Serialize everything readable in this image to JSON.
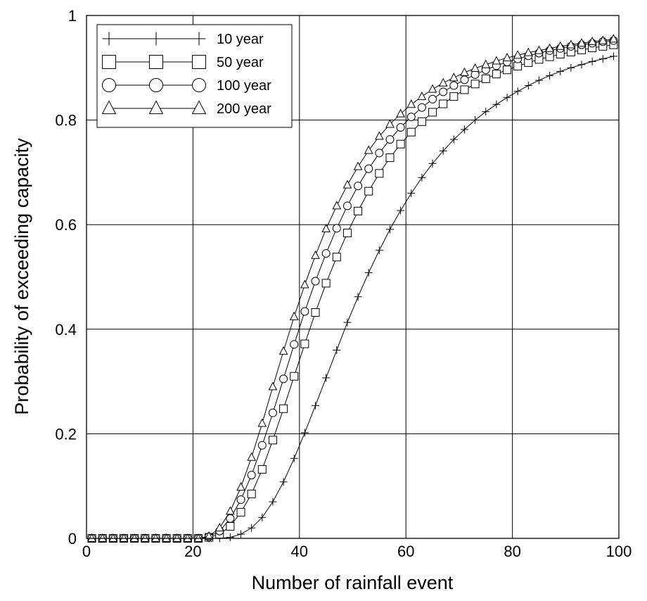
{
  "chart_data": {
    "type": "line",
    "title": "",
    "xlabel": "Number of rainfall event",
    "ylabel": "Probability of exceeding capacity",
    "xlim": [
      0,
      100
    ],
    "ylim": [
      0,
      1
    ],
    "xticks": [
      0,
      20,
      40,
      60,
      80,
      100
    ],
    "yticks": [
      0,
      0.2,
      0.4,
      0.6,
      0.8,
      1
    ],
    "xtick_labels": [
      "0",
      "20",
      "40",
      "60",
      "80",
      "100"
    ],
    "ytick_labels": [
      "0",
      "0.2",
      "0.4",
      "0.6",
      "0.8",
      "1"
    ],
    "grid": true,
    "legend_position": "top-left",
    "series": [
      {
        "name": "10 year",
        "marker": "plus",
        "x": [
          1,
          3,
          5,
          7,
          9,
          11,
          13,
          15,
          17,
          19,
          21,
          23,
          25,
          27,
          29,
          31,
          33,
          35,
          37,
          39,
          41,
          43,
          45,
          47,
          49,
          51,
          53,
          55,
          57,
          59,
          61,
          63,
          65,
          67,
          69,
          71,
          73,
          75,
          77,
          79,
          81,
          83,
          85,
          87,
          89,
          91,
          93,
          95,
          97,
          99
        ],
        "y": [
          0,
          0,
          0,
          0,
          0,
          0,
          0,
          0,
          0,
          0,
          0,
          0,
          0,
          0.002,
          0.008,
          0.02,
          0.04,
          0.07,
          0.108,
          0.153,
          0.202,
          0.254,
          0.307,
          0.36,
          0.413,
          0.462,
          0.508,
          0.551,
          0.591,
          0.627,
          0.66,
          0.69,
          0.717,
          0.741,
          0.763,
          0.782,
          0.8,
          0.816,
          0.83,
          0.843,
          0.855,
          0.866,
          0.876,
          0.885,
          0.893,
          0.9,
          0.906,
          0.912,
          0.917,
          0.922
        ]
      },
      {
        "name": "50 year",
        "marker": "square",
        "x": [
          1,
          3,
          5,
          7,
          9,
          11,
          13,
          15,
          17,
          19,
          21,
          23,
          25,
          27,
          29,
          31,
          33,
          35,
          37,
          39,
          41,
          43,
          45,
          47,
          49,
          51,
          53,
          55,
          57,
          59,
          61,
          63,
          65,
          67,
          69,
          71,
          73,
          75,
          77,
          79,
          81,
          83,
          85,
          87,
          89,
          91,
          93,
          95,
          97,
          99
        ],
        "y": [
          0,
          0,
          0,
          0,
          0,
          0,
          0,
          0,
          0,
          0,
          0,
          0.002,
          0.008,
          0.023,
          0.05,
          0.085,
          0.132,
          0.188,
          0.248,
          0.31,
          0.372,
          0.432,
          0.488,
          0.538,
          0.584,
          0.626,
          0.664,
          0.698,
          0.728,
          0.754,
          0.777,
          0.797,
          0.815,
          0.831,
          0.845,
          0.858,
          0.869,
          0.879,
          0.888,
          0.896,
          0.903,
          0.91,
          0.916,
          0.921,
          0.926,
          0.93,
          0.934,
          0.938,
          0.941,
          0.944
        ]
      },
      {
        "name": "100 year",
        "marker": "circle",
        "x": [
          1,
          3,
          5,
          7,
          9,
          11,
          13,
          15,
          17,
          19,
          21,
          23,
          25,
          27,
          29,
          31,
          33,
          35,
          37,
          39,
          41,
          43,
          45,
          47,
          49,
          51,
          53,
          55,
          57,
          59,
          61,
          63,
          65,
          67,
          69,
          71,
          73,
          75,
          77,
          79,
          81,
          83,
          85,
          87,
          89,
          91,
          93,
          95,
          97,
          99
        ],
        "y": [
          0,
          0,
          0,
          0,
          0,
          0,
          0,
          0,
          0,
          0,
          0,
          0.003,
          0.014,
          0.038,
          0.074,
          0.121,
          0.178,
          0.24,
          0.305,
          0.371,
          0.434,
          0.492,
          0.545,
          0.593,
          0.636,
          0.674,
          0.707,
          0.737,
          0.763,
          0.786,
          0.806,
          0.824,
          0.84,
          0.854,
          0.866,
          0.877,
          0.887,
          0.896,
          0.904,
          0.911,
          0.917,
          0.923,
          0.928,
          0.933,
          0.937,
          0.941,
          0.944,
          0.947,
          0.95,
          0.952
        ]
      },
      {
        "name": "200 year",
        "marker": "triangle",
        "x": [
          1,
          3,
          5,
          7,
          9,
          11,
          13,
          15,
          17,
          19,
          21,
          23,
          25,
          27,
          29,
          31,
          33,
          35,
          37,
          39,
          41,
          43,
          45,
          47,
          49,
          51,
          53,
          55,
          57,
          59,
          61,
          63,
          65,
          67,
          69,
          71,
          73,
          75,
          77,
          79,
          81,
          83,
          85,
          87,
          89,
          91,
          93,
          95,
          97,
          99
        ],
        "y": [
          0,
          0,
          0,
          0,
          0,
          0,
          0,
          0,
          0,
          0,
          0,
          0.004,
          0.02,
          0.052,
          0.098,
          0.155,
          0.22,
          0.29,
          0.358,
          0.424,
          0.485,
          0.541,
          0.592,
          0.636,
          0.676,
          0.711,
          0.742,
          0.769,
          0.792,
          0.812,
          0.83,
          0.845,
          0.859,
          0.871,
          0.881,
          0.891,
          0.899,
          0.906,
          0.913,
          0.919,
          0.924,
          0.929,
          0.933,
          0.937,
          0.941,
          0.944,
          0.947,
          0.95,
          0.952,
          0.955
        ]
      }
    ]
  }
}
